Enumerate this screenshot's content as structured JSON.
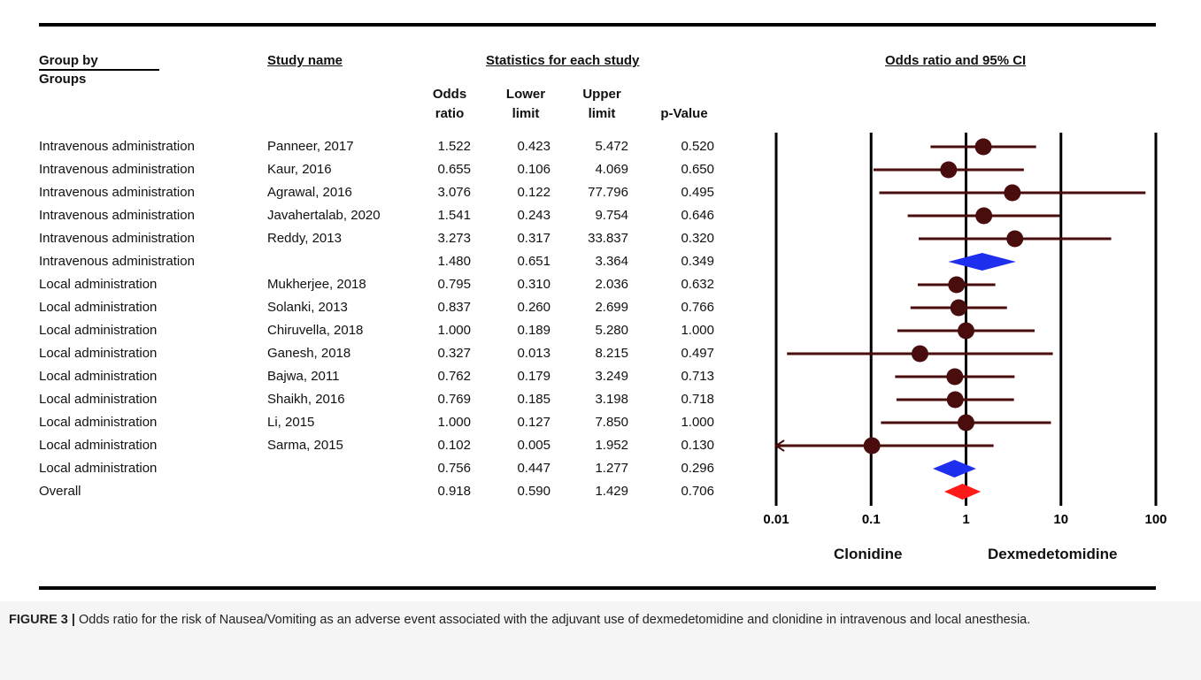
{
  "headers": {
    "group_by": "Group by",
    "groups": "Groups",
    "study_name": "Study name",
    "stats": "Statistics for each study",
    "plot": "Odds ratio and 95% CI",
    "col_or": "Odds ratio",
    "col_ll": "Lower limit",
    "col_ul": "Upper limit",
    "col_p": "p-Value"
  },
  "rows": [
    {
      "group": "Intravenous administration",
      "study": "Panneer, 2017",
      "or": "1.522",
      "ll": "0.423",
      "ul": "5.472",
      "p": "0.520"
    },
    {
      "group": "Intravenous administration",
      "study": "Kaur, 2016",
      "or": "0.655",
      "ll": "0.106",
      "ul": "4.069",
      "p": "0.650"
    },
    {
      "group": "Intravenous administration",
      "study": "Agrawal, 2016",
      "or": "3.076",
      "ll": "0.122",
      "ul": "77.796",
      "p": "0.495"
    },
    {
      "group": "Intravenous administration",
      "study": "Javahertalab, 2020",
      "or": "1.541",
      "ll": "0.243",
      "ul": "9.754",
      "p": "0.646"
    },
    {
      "group": "Intravenous administration",
      "study": "Reddy, 2013",
      "or": "3.273",
      "ll": "0.317",
      "ul": "33.837",
      "p": "0.320"
    },
    {
      "group": "Intravenous administration",
      "study": "",
      "or": "1.480",
      "ll": "0.651",
      "ul": "3.364",
      "p": "0.349"
    },
    {
      "group": "Local administration",
      "study": "Mukherjee, 2018",
      "or": "0.795",
      "ll": "0.310",
      "ul": "2.036",
      "p": "0.632"
    },
    {
      "group": "Local administration",
      "study": "Solanki, 2013",
      "or": "0.837",
      "ll": "0.260",
      "ul": "2.699",
      "p": "0.766"
    },
    {
      "group": "Local administration",
      "study": "Chiruvella, 2018",
      "or": "1.000",
      "ll": "0.189",
      "ul": "5.280",
      "p": "1.000"
    },
    {
      "group": "Local administration",
      "study": "Ganesh, 2018",
      "or": "0.327",
      "ll": "0.013",
      "ul": "8.215",
      "p": "0.497"
    },
    {
      "group": "Local administration",
      "study": "Bajwa, 2011",
      "or": "0.762",
      "ll": "0.179",
      "ul": "3.249",
      "p": "0.713"
    },
    {
      "group": "Local administration",
      "study": "Shaikh, 2016",
      "or": "0.769",
      "ll": "0.185",
      "ul": "3.198",
      "p": "0.718"
    },
    {
      "group": "Local administration",
      "study": "Li, 2015",
      "or": "1.000",
      "ll": "0.127",
      "ul": "7.850",
      "p": "1.000"
    },
    {
      "group": "Local administration",
      "study": "Sarma, 2015",
      "or": "0.102",
      "ll": "0.005",
      "ul": "1.952",
      "p": "0.130"
    },
    {
      "group": "Local administration",
      "study": "",
      "or": "0.756",
      "ll": "0.447",
      "ul": "1.277",
      "p": "0.296"
    },
    {
      "group": "Overall",
      "study": "",
      "or": "0.918",
      "ll": "0.590",
      "ul": "1.429",
      "p": "0.706"
    }
  ],
  "chart_data": {
    "type": "forest",
    "x_scale": "log",
    "xlim": [
      0.01,
      100
    ],
    "x_ticks": [
      "0.01",
      "0.1",
      "1",
      "10",
      "100"
    ],
    "left_label": "Clonidine",
    "right_label": "Dexmedetomidine",
    "points": [
      {
        "study": "Panneer, 2017",
        "or": 1.522,
        "ll": 0.423,
        "ul": 5.472,
        "kind": "study"
      },
      {
        "study": "Kaur, 2016",
        "or": 0.655,
        "ll": 0.106,
        "ul": 4.069,
        "kind": "study"
      },
      {
        "study": "Agrawal, 2016",
        "or": 3.076,
        "ll": 0.122,
        "ul": 77.796,
        "kind": "study"
      },
      {
        "study": "Javahertalab, 2020",
        "or": 1.541,
        "ll": 0.243,
        "ul": 9.754,
        "kind": "study"
      },
      {
        "study": "Reddy, 2013",
        "or": 3.273,
        "ll": 0.317,
        "ul": 33.837,
        "kind": "study"
      },
      {
        "study": "",
        "or": 1.48,
        "ll": 0.651,
        "ul": 3.364,
        "kind": "subtotal"
      },
      {
        "study": "Mukherjee, 2018",
        "or": 0.795,
        "ll": 0.31,
        "ul": 2.036,
        "kind": "study"
      },
      {
        "study": "Solanki, 2013",
        "or": 0.837,
        "ll": 0.26,
        "ul": 2.699,
        "kind": "study"
      },
      {
        "study": "Chiruvella, 2018",
        "or": 1.0,
        "ll": 0.189,
        "ul": 5.28,
        "kind": "study"
      },
      {
        "study": "Ganesh, 2018",
        "or": 0.327,
        "ll": 0.013,
        "ul": 8.215,
        "kind": "study"
      },
      {
        "study": "Bajwa, 2011",
        "or": 0.762,
        "ll": 0.179,
        "ul": 3.249,
        "kind": "study"
      },
      {
        "study": "Shaikh, 2016",
        "or": 0.769,
        "ll": 0.185,
        "ul": 3.198,
        "kind": "study"
      },
      {
        "study": "Li, 2015",
        "or": 1.0,
        "ll": 0.127,
        "ul": 7.85,
        "kind": "study"
      },
      {
        "study": "Sarma, 2015",
        "or": 0.102,
        "ll": 0.005,
        "ul": 1.952,
        "kind": "study"
      },
      {
        "study": "",
        "or": 0.756,
        "ll": 0.447,
        "ul": 1.277,
        "kind": "subtotal"
      },
      {
        "study": "",
        "or": 0.918,
        "ll": 0.59,
        "ul": 1.429,
        "kind": "overall"
      }
    ],
    "colors": {
      "study": "#4a0d0d",
      "subtotal": "#1f2ff0",
      "overall": "#ff1a1a"
    }
  },
  "caption": {
    "label": "FIGURE 3 |",
    "text": "Odds ratio for the risk of Nausea/Vomiting as an adverse event associated with the adjuvant use of dexmedetomidine and clonidine in intravenous and local anesthesia."
  }
}
